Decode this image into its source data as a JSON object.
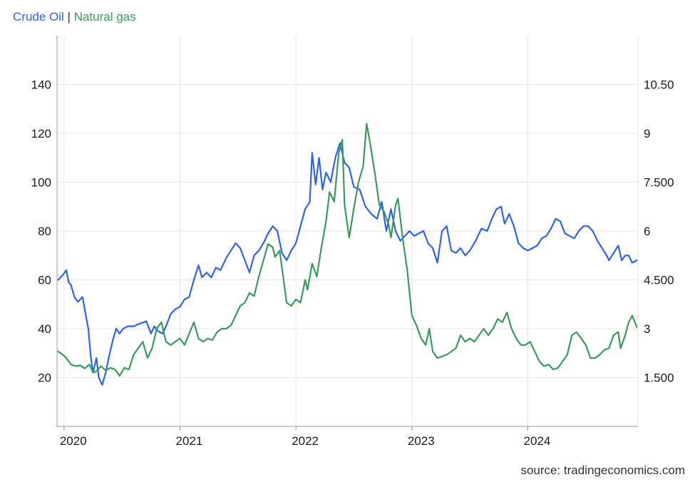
{
  "colors": {
    "crude": "#2f63e8",
    "gas": "#3a9a5b",
    "grid": "#e6e6e6",
    "axis": "#999999"
  },
  "legend": {
    "crude_label": "Crude Oil",
    "separator": "|",
    "gas_label": "Natural gas"
  },
  "source": "source: tradingeconomics.com",
  "chart_data": {
    "type": "line",
    "title": "",
    "xlabel": "",
    "ylabel": "",
    "x_ticks": [
      {
        "label": "2020",
        "t": 2020.0
      },
      {
        "label": "2021",
        "t": 2021.0
      },
      {
        "label": "2022",
        "t": 2022.0
      },
      {
        "label": "2023",
        "t": 2023.0
      },
      {
        "label": "2024",
        "t": 2024.0
      }
    ],
    "xlim": [
      2019.94,
      2024.95
    ],
    "y_left": {
      "ticks": [
        20,
        40,
        60,
        80,
        100,
        120,
        140
      ],
      "labels": [
        "20",
        "40",
        "60",
        "80",
        "100",
        "120",
        "140"
      ],
      "range": [
        0,
        160
      ]
    },
    "y_right": {
      "ticks": [
        1.5,
        3,
        4.5,
        6,
        7.5,
        9,
        10.5
      ],
      "labels": [
        "1.500",
        "3",
        "4.500",
        "6",
        "7.500",
        "9",
        "10.50"
      ],
      "range": [
        0,
        12
      ]
    },
    "series": [
      {
        "name": "Crude Oil",
        "axis": "left",
        "points": [
          [
            2019.95,
            60
          ],
          [
            2019.99,
            62
          ],
          [
            2020.02,
            64
          ],
          [
            2020.04,
            59
          ],
          [
            2020.06,
            58
          ],
          [
            2020.09,
            53
          ],
          [
            2020.12,
            51
          ],
          [
            2020.16,
            53
          ],
          [
            2020.19,
            45
          ],
          [
            2020.21,
            40
          ],
          [
            2020.23,
            29
          ],
          [
            2020.25,
            22
          ],
          [
            2020.28,
            28
          ],
          [
            2020.3,
            20
          ],
          [
            2020.33,
            17
          ],
          [
            2020.36,
            22
          ],
          [
            2020.39,
            29
          ],
          [
            2020.42,
            35
          ],
          [
            2020.45,
            40
          ],
          [
            2020.48,
            38
          ],
          [
            2020.51,
            40
          ],
          [
            2020.55,
            41
          ],
          [
            2020.6,
            41
          ],
          [
            2020.65,
            42
          ],
          [
            2020.71,
            43
          ],
          [
            2020.75,
            38
          ],
          [
            2020.78,
            41
          ],
          [
            2020.81,
            39
          ],
          [
            2020.85,
            38
          ],
          [
            2020.88,
            41
          ],
          [
            2020.92,
            46
          ],
          [
            2020.96,
            48
          ],
          [
            2021.0,
            49
          ],
          [
            2021.04,
            52
          ],
          [
            2021.08,
            53
          ],
          [
            2021.12,
            60
          ],
          [
            2021.16,
            66
          ],
          [
            2021.19,
            61
          ],
          [
            2021.23,
            63
          ],
          [
            2021.27,
            61
          ],
          [
            2021.31,
            65
          ],
          [
            2021.35,
            64
          ],
          [
            2021.4,
            69
          ],
          [
            2021.44,
            72
          ],
          [
            2021.48,
            75
          ],
          [
            2021.52,
            73
          ],
          [
            2021.56,
            68
          ],
          [
            2021.6,
            63
          ],
          [
            2021.64,
            70
          ],
          [
            2021.68,
            72
          ],
          [
            2021.72,
            75
          ],
          [
            2021.76,
            79
          ],
          [
            2021.8,
            82
          ],
          [
            2021.84,
            80
          ],
          [
            2021.88,
            71
          ],
          [
            2021.92,
            68
          ],
          [
            2021.96,
            72
          ],
          [
            2022.0,
            75
          ],
          [
            2022.04,
            82
          ],
          [
            2022.08,
            89
          ],
          [
            2022.12,
            92
          ],
          [
            2022.14,
            112
          ],
          [
            2022.17,
            99
          ],
          [
            2022.2,
            110
          ],
          [
            2022.23,
            97
          ],
          [
            2022.26,
            104
          ],
          [
            2022.3,
            100
          ],
          [
            2022.34,
            110
          ],
          [
            2022.38,
            116
          ],
          [
            2022.42,
            108
          ],
          [
            2022.46,
            106
          ],
          [
            2022.5,
            98
          ],
          [
            2022.55,
            97
          ],
          [
            2022.6,
            90
          ],
          [
            2022.65,
            87
          ],
          [
            2022.7,
            85
          ],
          [
            2022.74,
            92
          ],
          [
            2022.78,
            80
          ],
          [
            2022.82,
            89
          ],
          [
            2022.86,
            80
          ],
          [
            2022.9,
            76
          ],
          [
            2022.94,
            78
          ],
          [
            2022.98,
            80
          ],
          [
            2023.02,
            78
          ],
          [
            2023.06,
            79
          ],
          [
            2023.1,
            80
          ],
          [
            2023.14,
            75
          ],
          [
            2023.18,
            73
          ],
          [
            2023.22,
            67
          ],
          [
            2023.26,
            80
          ],
          [
            2023.3,
            82
          ],
          [
            2023.34,
            72
          ],
          [
            2023.38,
            71
          ],
          [
            2023.42,
            73
          ],
          [
            2023.46,
            70
          ],
          [
            2023.5,
            72
          ],
          [
            2023.55,
            76
          ],
          [
            2023.6,
            81
          ],
          [
            2023.65,
            80
          ],
          [
            2023.69,
            85
          ],
          [
            2023.73,
            89
          ],
          [
            2023.77,
            90
          ],
          [
            2023.8,
            83
          ],
          [
            2023.84,
            87
          ],
          [
            2023.88,
            82
          ],
          [
            2023.92,
            75
          ],
          [
            2023.96,
            73
          ],
          [
            2024.0,
            72
          ],
          [
            2024.04,
            73
          ],
          [
            2024.08,
            74
          ],
          [
            2024.12,
            77
          ],
          [
            2024.16,
            78
          ],
          [
            2024.2,
            81
          ],
          [
            2024.24,
            85
          ],
          [
            2024.28,
            84
          ],
          [
            2024.32,
            79
          ],
          [
            2024.36,
            78
          ],
          [
            2024.4,
            77
          ],
          [
            2024.44,
            80
          ],
          [
            2024.48,
            82
          ],
          [
            2024.52,
            82
          ],
          [
            2024.56,
            80
          ],
          [
            2024.6,
            76
          ],
          [
            2024.64,
            73
          ],
          [
            2024.68,
            70
          ],
          [
            2024.7,
            68
          ],
          [
            2024.74,
            71
          ],
          [
            2024.78,
            74
          ],
          [
            2024.81,
            68
          ],
          [
            2024.84,
            70
          ],
          [
            2024.87,
            70
          ],
          [
            2024.9,
            67
          ],
          [
            2024.94,
            68
          ]
        ]
      },
      {
        "name": "Natural gas",
        "axis": "right",
        "points": [
          [
            2019.95,
            2.3
          ],
          [
            2019.99,
            2.2
          ],
          [
            2020.02,
            2.1
          ],
          [
            2020.06,
            1.9
          ],
          [
            2020.1,
            1.85
          ],
          [
            2020.14,
            1.87
          ],
          [
            2020.18,
            1.78
          ],
          [
            2020.22,
            1.9
          ],
          [
            2020.25,
            1.65
          ],
          [
            2020.28,
            1.7
          ],
          [
            2020.32,
            1.85
          ],
          [
            2020.36,
            1.72
          ],
          [
            2020.4,
            1.8
          ],
          [
            2020.44,
            1.75
          ],
          [
            2020.48,
            1.55
          ],
          [
            2020.52,
            1.8
          ],
          [
            2020.56,
            1.75
          ],
          [
            2020.6,
            2.2
          ],
          [
            2020.64,
            2.4
          ],
          [
            2020.68,
            2.6
          ],
          [
            2020.72,
            2.1
          ],
          [
            2020.76,
            2.4
          ],
          [
            2020.8,
            3.0
          ],
          [
            2020.84,
            3.2
          ],
          [
            2020.88,
            2.6
          ],
          [
            2020.92,
            2.5
          ],
          [
            2020.96,
            2.6
          ],
          [
            2021.0,
            2.7
          ],
          [
            2021.04,
            2.5
          ],
          [
            2021.08,
            2.85
          ],
          [
            2021.12,
            3.2
          ],
          [
            2021.16,
            2.7
          ],
          [
            2021.2,
            2.6
          ],
          [
            2021.24,
            2.7
          ],
          [
            2021.28,
            2.65
          ],
          [
            2021.32,
            2.9
          ],
          [
            2021.36,
            3.0
          ],
          [
            2021.4,
            3.0
          ],
          [
            2021.44,
            3.1
          ],
          [
            2021.48,
            3.4
          ],
          [
            2021.52,
            3.7
          ],
          [
            2021.56,
            3.8
          ],
          [
            2021.6,
            4.1
          ],
          [
            2021.64,
            4.0
          ],
          [
            2021.68,
            4.6
          ],
          [
            2021.72,
            5.1
          ],
          [
            2021.76,
            5.6
          ],
          [
            2021.8,
            5.5
          ],
          [
            2021.82,
            5.2
          ],
          [
            2021.86,
            5.4
          ],
          [
            2021.89,
            4.6
          ],
          [
            2021.92,
            3.8
          ],
          [
            2021.96,
            3.7
          ],
          [
            2022.0,
            3.9
          ],
          [
            2022.04,
            3.8
          ],
          [
            2022.08,
            4.5
          ],
          [
            2022.1,
            4.2
          ],
          [
            2022.14,
            5.0
          ],
          [
            2022.18,
            4.6
          ],
          [
            2022.22,
            5.5
          ],
          [
            2022.26,
            6.3
          ],
          [
            2022.29,
            7.2
          ],
          [
            2022.33,
            6.9
          ],
          [
            2022.37,
            8.4
          ],
          [
            2022.4,
            8.8
          ],
          [
            2022.42,
            6.8
          ],
          [
            2022.46,
            5.8
          ],
          [
            2022.5,
            6.7
          ],
          [
            2022.54,
            7.5
          ],
          [
            2022.58,
            8.0
          ],
          [
            2022.61,
            9.3
          ],
          [
            2022.64,
            8.7
          ],
          [
            2022.68,
            7.8
          ],
          [
            2022.72,
            6.8
          ],
          [
            2022.76,
            6.6
          ],
          [
            2022.8,
            6.2
          ],
          [
            2022.82,
            5.8
          ],
          [
            2022.86,
            6.8
          ],
          [
            2022.88,
            7.0
          ],
          [
            2022.92,
            5.8
          ],
          [
            2022.96,
            4.8
          ],
          [
            2023.0,
            3.4
          ],
          [
            2023.04,
            3.1
          ],
          [
            2023.08,
            2.7
          ],
          [
            2023.12,
            2.5
          ],
          [
            2023.15,
            3.0
          ],
          [
            2023.18,
            2.3
          ],
          [
            2023.22,
            2.1
          ],
          [
            2023.26,
            2.15
          ],
          [
            2023.3,
            2.2
          ],
          [
            2023.34,
            2.3
          ],
          [
            2023.38,
            2.4
          ],
          [
            2023.42,
            2.8
          ],
          [
            2023.46,
            2.6
          ],
          [
            2023.5,
            2.7
          ],
          [
            2023.54,
            2.6
          ],
          [
            2023.58,
            2.8
          ],
          [
            2023.62,
            3.0
          ],
          [
            2023.66,
            2.8
          ],
          [
            2023.7,
            3.0
          ],
          [
            2023.74,
            3.3
          ],
          [
            2023.78,
            3.2
          ],
          [
            2023.82,
            3.5
          ],
          [
            2023.86,
            3.0
          ],
          [
            2023.9,
            2.7
          ],
          [
            2023.94,
            2.5
          ],
          [
            2023.98,
            2.5
          ],
          [
            2024.02,
            2.6
          ],
          [
            2024.06,
            2.3
          ],
          [
            2024.1,
            2.0
          ],
          [
            2024.14,
            1.85
          ],
          [
            2024.18,
            1.9
          ],
          [
            2024.22,
            1.75
          ],
          [
            2024.26,
            1.8
          ],
          [
            2024.3,
            2.0
          ],
          [
            2024.34,
            2.2
          ],
          [
            2024.38,
            2.8
          ],
          [
            2024.42,
            2.9
          ],
          [
            2024.46,
            2.7
          ],
          [
            2024.5,
            2.5
          ],
          [
            2024.54,
            2.1
          ],
          [
            2024.58,
            2.1
          ],
          [
            2024.62,
            2.2
          ],
          [
            2024.66,
            2.35
          ],
          [
            2024.7,
            2.4
          ],
          [
            2024.74,
            2.8
          ],
          [
            2024.78,
            2.9
          ],
          [
            2024.8,
            2.4
          ],
          [
            2024.84,
            2.8
          ],
          [
            2024.87,
            3.2
          ],
          [
            2024.9,
            3.4
          ],
          [
            2024.94,
            3.05
          ]
        ]
      }
    ]
  }
}
